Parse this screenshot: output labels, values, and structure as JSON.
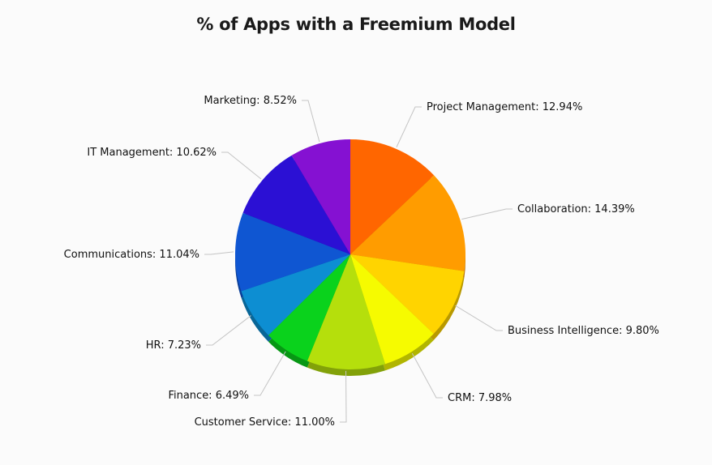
{
  "chart_data": {
    "type": "pie",
    "title": "% of Apps with a Freemium Model",
    "slices": [
      {
        "label": "Project Management",
        "value": 12.94,
        "display": "Project Management: 12.94%",
        "color": "#ff6600"
      },
      {
        "label": "Collaboration",
        "value": 14.39,
        "display": "Collaboration: 14.39%",
        "color": "#ff9c00"
      },
      {
        "label": "Business Intelligence",
        "value": 9.8,
        "display": "Business Intelligence: 9.80%",
        "color": "#ffd400"
      },
      {
        "label": "CRM",
        "value": 7.98,
        "display": "CRM: 7.98%",
        "color": "#f6fb00"
      },
      {
        "label": "Customer Service",
        "value": 11.0,
        "display": "Customer Service: 11.00%",
        "color": "#b5df0c"
      },
      {
        "label": "Finance",
        "value": 6.49,
        "display": "Finance: 6.49%",
        "color": "#0ad21c"
      },
      {
        "label": "HR",
        "value": 7.23,
        "display": "HR: 7.23%",
        "color": "#0d8ed2"
      },
      {
        "label": "Communications",
        "value": 11.04,
        "display": "Communications: 11.04%",
        "color": "#0f56d2"
      },
      {
        "label": "IT Management",
        "value": 10.62,
        "display": "IT Management: 10.62%",
        "color": "#2b10d4"
      },
      {
        "label": "Marketing",
        "value": 8.52,
        "display": "Marketing: 8.52%",
        "color": "#8511d2"
      }
    ],
    "start_angle": "top",
    "direction": "clockwise",
    "legend": "none",
    "labels": "outside with leader lines"
  }
}
